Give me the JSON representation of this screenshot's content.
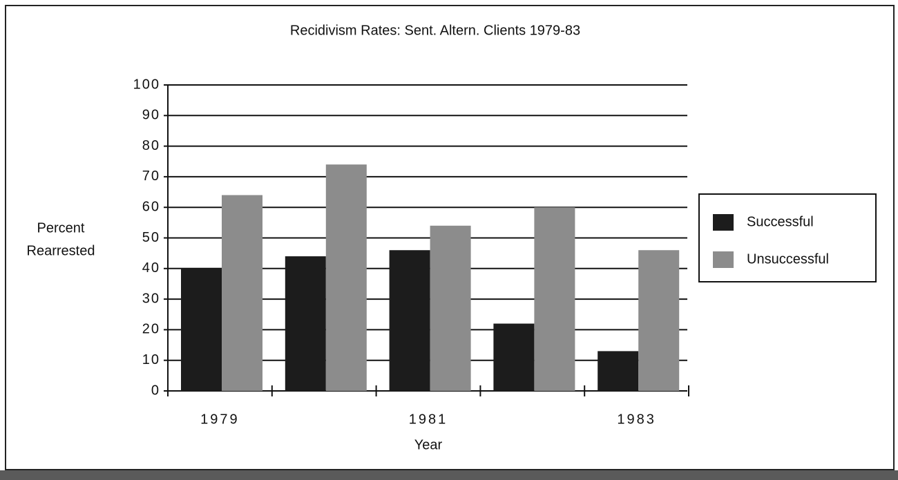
{
  "chart_data": {
    "type": "bar",
    "title": "Recidivism Rates: Sent. Altern. Clients 1979-83",
    "x_label": "Year",
    "y_label": [
      "Percent",
      "Rearrested"
    ],
    "categories": [
      "1979",
      null,
      "1981",
      null,
      "1983"
    ],
    "series": [
      {
        "name": "Successful",
        "color": "#1c1c1c",
        "values": [
          40,
          44,
          46,
          22,
          13
        ]
      },
      {
        "name": "Unsuccessful",
        "color": "#8c8c8c",
        "values": [
          64,
          74,
          54,
          60,
          46
        ]
      }
    ],
    "ylim": [
      0,
      100
    ],
    "yticks": [
      0,
      10,
      20,
      30,
      40,
      50,
      60,
      70,
      80,
      90,
      100
    ],
    "grid": true,
    "legend": "right"
  }
}
